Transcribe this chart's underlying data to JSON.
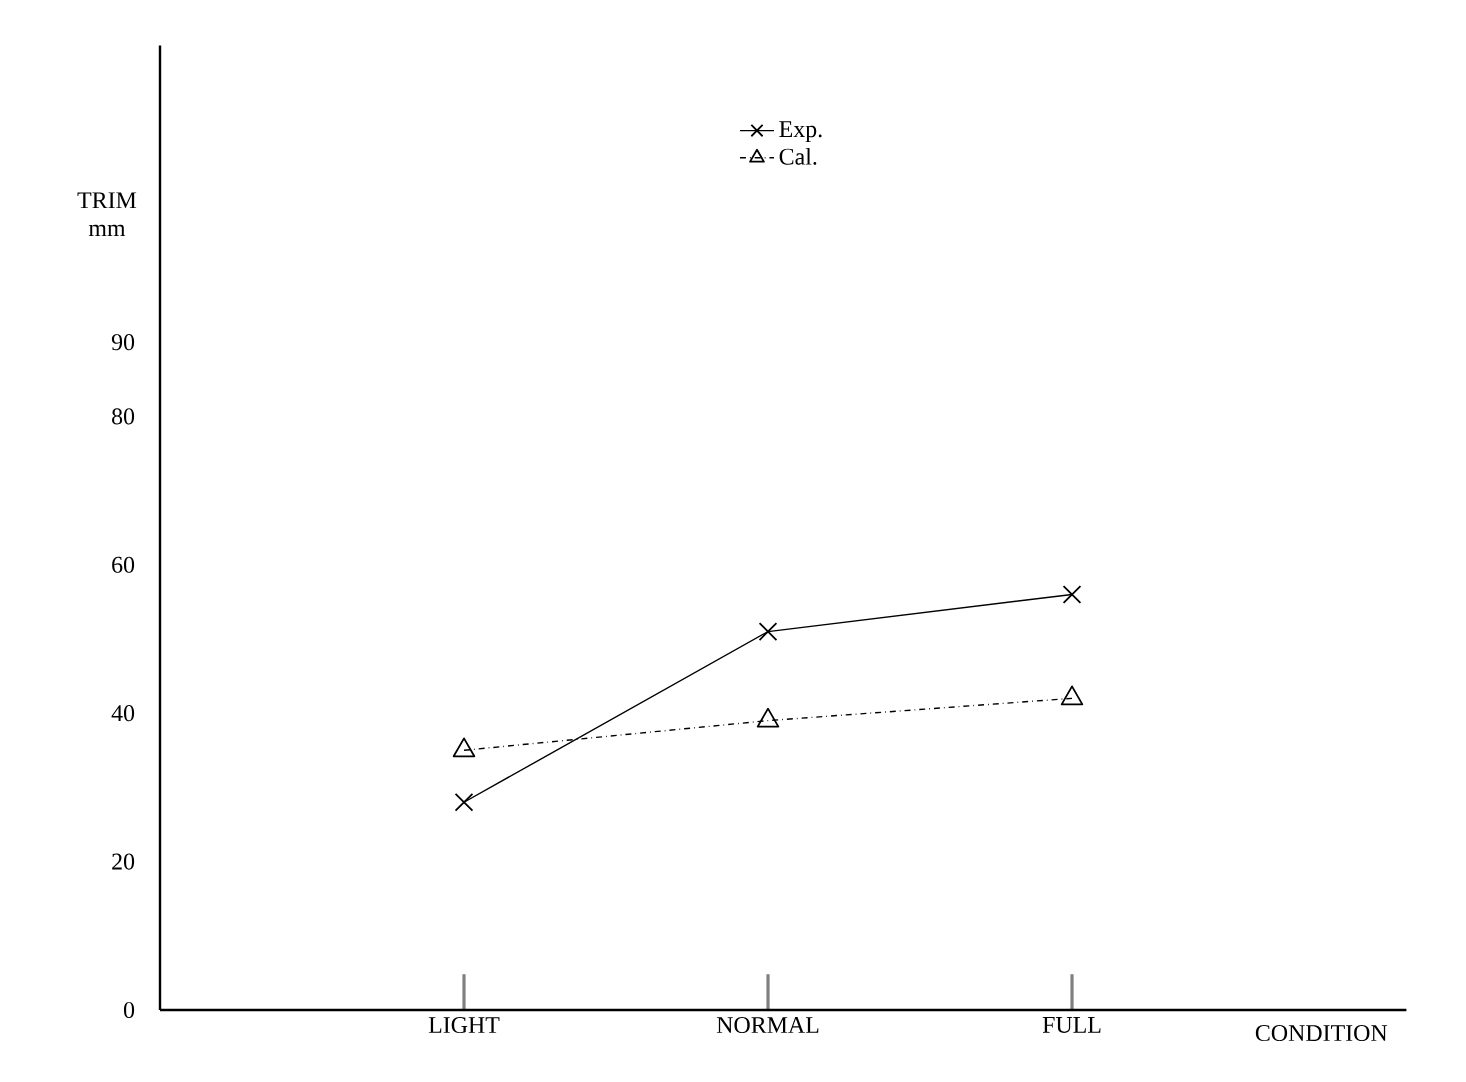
{
  "chart_data": {
    "type": "line",
    "categories": [
      "LIGHT",
      "NORMAL",
      "FULL"
    ],
    "xlabel": "CONDITION",
    "ylabel": "TRIM mm",
    "ylim": [
      0,
      130
    ],
    "yticks": [
      0,
      20,
      40,
      60,
      80,
      90
    ],
    "legend": "top",
    "grid": false,
    "series": [
      {
        "name": "Exp.",
        "color": "#000000",
        "marker": "cross",
        "line_style": "solid",
        "values": [
          28,
          51,
          56
        ]
      },
      {
        "name": "Cal.",
        "color": "#000000",
        "marker": "triangle",
        "line_style": "dashed",
        "values": [
          35,
          39,
          42
        ]
      }
    ]
  }
}
